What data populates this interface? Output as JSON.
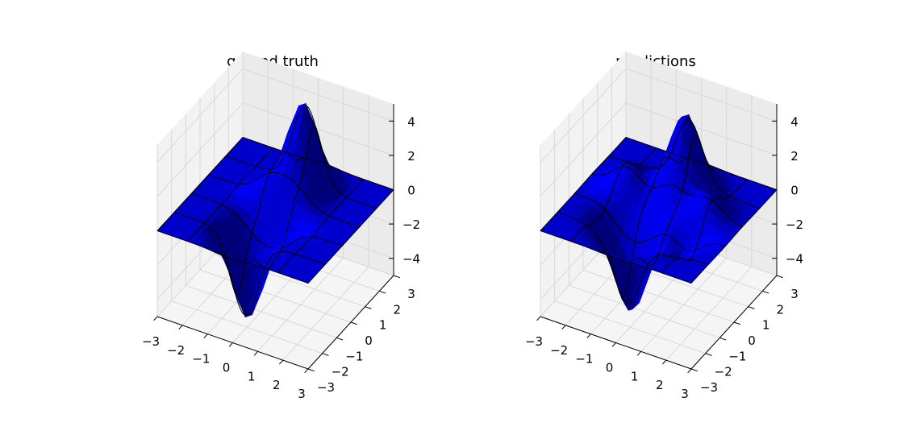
{
  "chart_data": [
    {
      "type": "surface3d",
      "title": "ground truth",
      "xlim": [
        -3,
        3
      ],
      "ylim": [
        -3,
        3
      ],
      "zlim": [
        -5,
        5
      ],
      "x_ticks": [
        "−3",
        "−2",
        "−1",
        "0",
        "1",
        "2",
        "3"
      ],
      "y_ticks": [
        "−3",
        "−2",
        "−1",
        "0",
        "1",
        "2",
        "3"
      ],
      "z_ticks": [
        "−4",
        "−2",
        "0",
        "2",
        "4"
      ],
      "surface_color": "#0000ff",
      "peaks": [
        {
          "x": 0.2,
          "y": 1.6,
          "z": 4.9
        },
        {
          "x": -0.6,
          "y": 0.4,
          "z": 1.6
        },
        {
          "x": 0.6,
          "y": 0.1,
          "z": 1.1
        }
      ],
      "troughs": [
        {
          "x": -0.2,
          "y": -1.6,
          "z": -4.9
        },
        {
          "x": 0.6,
          "y": -0.4,
          "z": -1.6
        },
        {
          "x": -0.6,
          "y": -0.1,
          "z": -1.1
        }
      ],
      "corner_values": [
        0,
        0,
        0,
        0
      ]
    },
    {
      "type": "surface3d",
      "title": "predictions",
      "xlim": [
        -3,
        3
      ],
      "ylim": [
        -3,
        3
      ],
      "zlim": [
        -5,
        5
      ],
      "x_ticks": [
        "−3",
        "−2",
        "−1",
        "0",
        "1",
        "2",
        "3"
      ],
      "y_ticks": [
        "−3",
        "−2",
        "−1",
        "0",
        "1",
        "2",
        "3"
      ],
      "z_ticks": [
        "−4",
        "−2",
        "0",
        "2",
        "4"
      ],
      "surface_color": "#0000ff",
      "peaks": [
        {
          "x": 0.2,
          "y": 1.5,
          "z": 4.4
        },
        {
          "x": -1.6,
          "y": 0.7,
          "z": 1.2
        },
        {
          "x": 1.6,
          "y": 0.6,
          "z": 1.0
        }
      ],
      "troughs": [
        {
          "x": -0.2,
          "y": -1.5,
          "z": -4.4
        },
        {
          "x": -1.0,
          "y": -1.0,
          "z": -1.5
        },
        {
          "x": 1.5,
          "y": -0.9,
          "z": -1.3
        }
      ],
      "corner_values": [
        0,
        0,
        0,
        0
      ]
    }
  ]
}
